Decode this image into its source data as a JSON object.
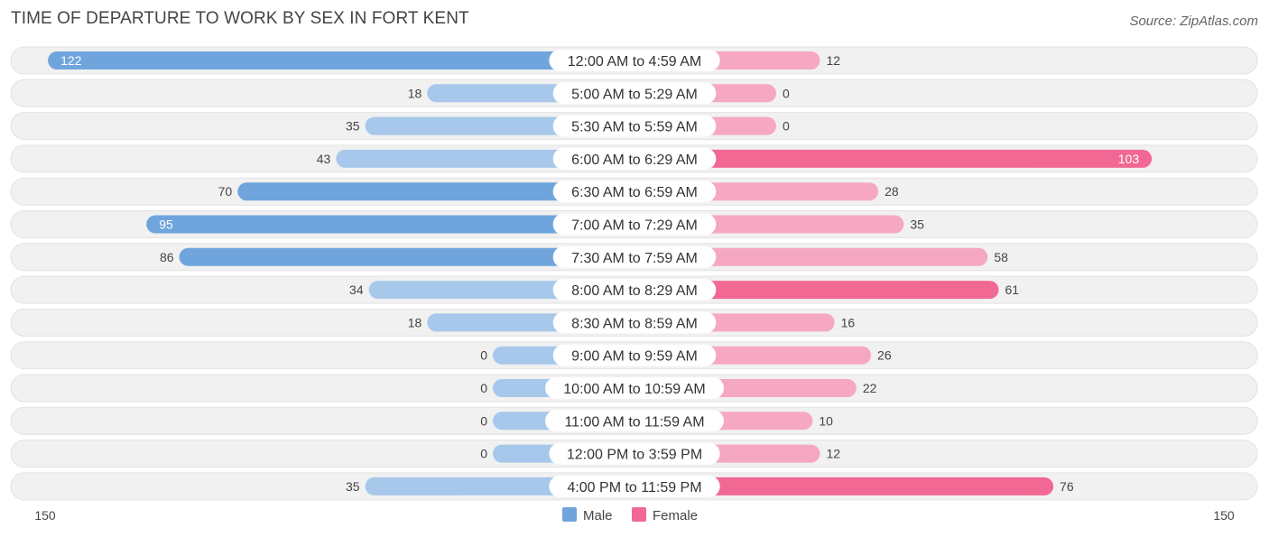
{
  "header": {
    "title": "TIME OF DEPARTURE TO WORK BY SEX IN FORT KENT",
    "source": "Source: ZipAtlas.com"
  },
  "chart_data": {
    "type": "bar",
    "orientation": "horizontal-diverging",
    "categories": [
      "12:00 AM to 4:59 AM",
      "5:00 AM to 5:29 AM",
      "5:30 AM to 5:59 AM",
      "6:00 AM to 6:29 AM",
      "6:30 AM to 6:59 AM",
      "7:00 AM to 7:29 AM",
      "7:30 AM to 7:59 AM",
      "8:00 AM to 8:29 AM",
      "8:30 AM to 8:59 AM",
      "9:00 AM to 9:59 AM",
      "10:00 AM to 10:59 AM",
      "11:00 AM to 11:59 AM",
      "12:00 PM to 3:59 PM",
      "4:00 PM to 11:59 PM"
    ],
    "series": [
      {
        "name": "Male",
        "values": [
          122,
          18,
          35,
          43,
          70,
          95,
          86,
          34,
          18,
          0,
          0,
          0,
          0,
          35
        ]
      },
      {
        "name": "Female",
        "values": [
          12,
          0,
          0,
          103,
          28,
          35,
          58,
          61,
          16,
          26,
          22,
          10,
          12,
          76
        ]
      }
    ],
    "axis": {
      "left_label": "150",
      "right_label": "150",
      "max": 150
    },
    "legend": {
      "position": "bottom-center"
    },
    "colors": {
      "male_strong": "#6fa5dc",
      "male_light": "#a7c8ea",
      "female_strong": "#f06893",
      "female_light": "#f6a8c2",
      "row_bg": "#f1f1f1"
    }
  }
}
